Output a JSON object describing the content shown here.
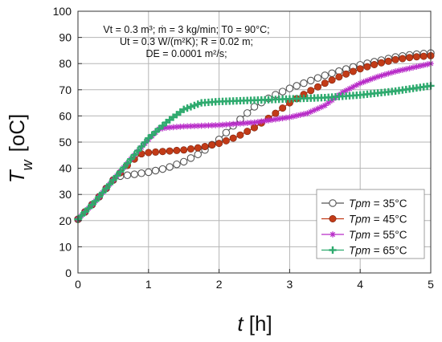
{
  "chart_data": {
    "type": "line",
    "xlabel": "t [h]",
    "xlabel_var": "t",
    "xlabel_unit": " [h]",
    "ylabel_var": "T",
    "ylabel_sub": "w",
    "ylabel_unit": "[oC]",
    "xlim": [
      0,
      5
    ],
    "ylim": [
      0,
      100
    ],
    "xticks": [
      0,
      1,
      2,
      3,
      4,
      5
    ],
    "yticks": [
      0,
      10,
      20,
      30,
      40,
      50,
      60,
      70,
      80,
      90,
      100
    ],
    "grid": true,
    "legend_position": "bottom-right",
    "annotation": [
      "Vt = 0.3 m³; ṁ = 3 kg/min; T0 = 90°C;",
      "Ut = 0.3 W/(m²K); R = 0.02 m;",
      "DE = 0.0001 m²/s;"
    ],
    "series": [
      {
        "name": "Tpm = 35°C",
        "color": "#555555",
        "marker": "open-circle",
        "x": [
          0,
          0.25,
          0.5,
          0.6,
          0.75,
          1.0,
          1.25,
          1.5,
          1.75,
          2.0,
          2.25,
          2.5,
          2.75,
          3.0,
          3.25,
          3.5,
          3.75,
          4.0,
          4.25,
          4.5,
          4.75,
          5.0
        ],
        "y": [
          20.5,
          27.5,
          35.5,
          37.0,
          37.5,
          38.5,
          40.0,
          42.5,
          46.0,
          51.0,
          57.5,
          63.5,
          67.5,
          70.5,
          73.0,
          75.5,
          77.5,
          79.5,
          81.0,
          82.5,
          83.5,
          84.0
        ]
      },
      {
        "name": "Tpm = 45°C",
        "color": "#c23b17",
        "marker": "filled-circle",
        "x": [
          0,
          0.25,
          0.5,
          0.75,
          0.9,
          1.0,
          1.25,
          1.5,
          1.75,
          2.0,
          2.25,
          2.5,
          2.75,
          3.0,
          3.25,
          3.5,
          3.75,
          4.0,
          4.25,
          4.5,
          4.75,
          5.0
        ],
        "y": [
          20.5,
          27.5,
          35.5,
          42.5,
          45.5,
          46.0,
          46.5,
          47.0,
          48.0,
          49.5,
          52.0,
          55.5,
          60.0,
          65.0,
          69.0,
          72.5,
          75.5,
          78.0,
          80.0,
          81.5,
          82.5,
          83.0
        ]
      },
      {
        "name": "Tpm = 55°C",
        "color": "#b82cc8",
        "marker": "asterisk",
        "x": [
          0,
          0.25,
          0.5,
          0.75,
          1.0,
          1.15,
          1.25,
          1.5,
          2.0,
          2.5,
          3.0,
          3.25,
          3.5,
          3.75,
          4.0,
          4.25,
          4.5,
          4.75,
          5.0
        ],
        "y": [
          20.5,
          27.5,
          35.5,
          43.5,
          51.0,
          55.0,
          55.5,
          56.0,
          56.5,
          57.5,
          59.5,
          61.0,
          64.0,
          69.0,
          72.5,
          75.0,
          77.0,
          78.5,
          80.0
        ]
      },
      {
        "name": "Tpm = 65°C",
        "color": "#2eaa6e",
        "marker": "plus",
        "x": [
          0,
          0.25,
          0.5,
          0.75,
          1.0,
          1.25,
          1.5,
          1.75,
          2.0,
          2.5,
          3.0,
          3.5,
          4.0,
          4.5,
          5.0
        ],
        "y": [
          20.5,
          27.5,
          35.5,
          43.5,
          51.5,
          57.5,
          62.5,
          65.0,
          65.5,
          66.0,
          66.5,
          67.0,
          68.0,
          69.5,
          71.5
        ]
      }
    ]
  }
}
